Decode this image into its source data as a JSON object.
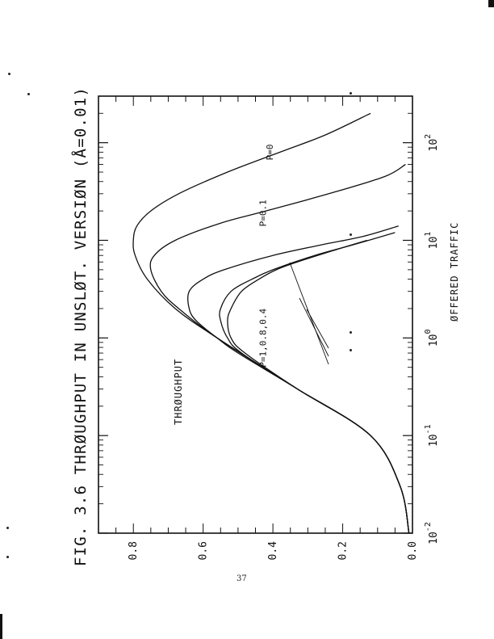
{
  "page_number": "37",
  "chart_data": {
    "type": "line",
    "title": "FIG. 3.6 THRØUGHPUT IN UNSLØT. VERSIØN (Å=0.01)",
    "xlabel": "ØFFERED TRAFFIC",
    "ylabel": "THRØUGHPUT",
    "x_scale": "log",
    "xlim": [
      0.01,
      300
    ],
    "ylim": [
      0.0,
      0.9
    ],
    "x_ticks": [
      {
        "value": 0.01,
        "base": "10",
        "exp": "-2"
      },
      {
        "value": 0.1,
        "base": "10",
        "exp": "-1"
      },
      {
        "value": 1,
        "base": "10",
        "exp": "0"
      },
      {
        "value": 10,
        "base": "10",
        "exp": "1"
      },
      {
        "value": 100,
        "base": "10",
        "exp": "2"
      }
    ],
    "y_ticks": [
      {
        "value": 0.0,
        "label": "0.0"
      },
      {
        "value": 0.2,
        "label": "0.2"
      },
      {
        "value": 0.4,
        "label": "0.4"
      },
      {
        "value": 0.6,
        "label": "0.6"
      },
      {
        "value": 0.8,
        "label": "0.8"
      }
    ],
    "grid": false,
    "series": [
      {
        "name": "P=0",
        "x": [
          0.01,
          0.03,
          0.1,
          0.3,
          1,
          2,
          4,
          7,
          10,
          14,
          20,
          30,
          50,
          80,
          120,
          200
        ],
        "values": [
          0.01,
          0.035,
          0.12,
          0.33,
          0.56,
          0.68,
          0.76,
          0.795,
          0.8,
          0.79,
          0.75,
          0.67,
          0.53,
          0.38,
          0.25,
          0.12
        ]
      },
      {
        "name": "P=0.1",
        "x": [
          0.01,
          0.03,
          0.1,
          0.3,
          1,
          2,
          3,
          5,
          7,
          10,
          15,
          20,
          30,
          45,
          60
        ],
        "values": [
          0.01,
          0.035,
          0.12,
          0.33,
          0.56,
          0.67,
          0.72,
          0.75,
          0.74,
          0.68,
          0.55,
          0.42,
          0.24,
          0.08,
          0.02
        ]
      },
      {
        "name": "P=0.4",
        "x": [
          0.01,
          0.03,
          0.1,
          0.3,
          0.7,
          1,
          1.5,
          2,
          3,
          4,
          5,
          7,
          9,
          11,
          14
        ],
        "values": [
          0.01,
          0.035,
          0.12,
          0.33,
          0.5,
          0.56,
          0.62,
          0.64,
          0.64,
          0.6,
          0.54,
          0.4,
          0.26,
          0.14,
          0.04
        ]
      },
      {
        "name": "P=0.8",
        "x": [
          0.01,
          0.03,
          0.1,
          0.3,
          0.7,
          1,
          1.5,
          2,
          3,
          4,
          5,
          7,
          9,
          12
        ],
        "values": [
          0.01,
          0.035,
          0.12,
          0.33,
          0.49,
          0.53,
          0.55,
          0.55,
          0.52,
          0.46,
          0.4,
          0.28,
          0.17,
          0.05
        ]
      },
      {
        "name": "P=1",
        "x": [
          0.01,
          0.03,
          0.1,
          0.3,
          0.7,
          1,
          1.5,
          2,
          3,
          4,
          5,
          6,
          8,
          10
        ],
        "values": [
          0.01,
          0.035,
          0.12,
          0.33,
          0.48,
          0.52,
          0.53,
          0.52,
          0.49,
          0.44,
          0.39,
          0.33,
          0.22,
          0.13
        ]
      }
    ],
    "annotations": [
      {
        "text": "P=0",
        "x": 80,
        "y": 0.4
      },
      {
        "text": "P=0.1",
        "x": 19,
        "y": 0.42
      },
      {
        "text": "P=1,0.8,0.4",
        "x": 1,
        "y": 0.42
      }
    ]
  }
}
